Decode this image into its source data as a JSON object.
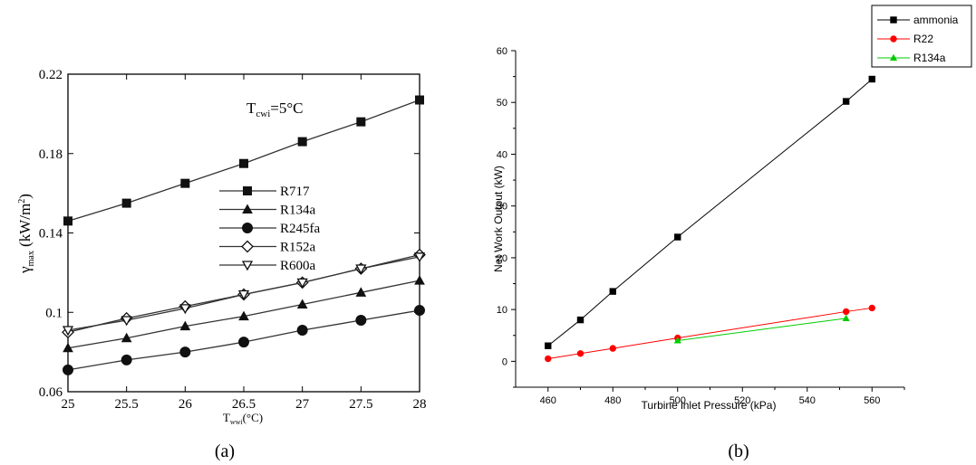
{
  "chart_data": [
    {
      "panel_label": "(a)",
      "type": "line",
      "annotation": {
        "main": "T",
        "sub": "cwi",
        "rest": "=5°C"
      },
      "xlabel": {
        "main": "T",
        "sub": "wwi",
        "rest": "(°C)"
      },
      "ylabel": {
        "main": "γ",
        "sub": "max",
        "unit": " (kW/m",
        "sup": "2",
        "close": ")"
      },
      "xlim": [
        25,
        28
      ],
      "ylim": [
        0.06,
        0.22
      ],
      "x_ticks": [
        "25",
        "25.5",
        "26",
        "26.5",
        "27",
        "27.5",
        "28"
      ],
      "y_ticks": [
        "0.06",
        "0.1",
        "0.14",
        "0.18",
        "0.22"
      ],
      "x_tick_values": [
        25,
        25.5,
        26,
        26.5,
        27,
        27.5,
        28
      ],
      "y_tick_values": [
        0.06,
        0.1,
        0.14,
        0.18,
        0.22
      ],
      "legend_position": "center",
      "x": [
        25,
        25.5,
        26,
        26.5,
        27,
        27.5,
        28
      ],
      "series": [
        {
          "name": "R717",
          "marker": "filled-square",
          "values": [
            0.146,
            0.155,
            0.165,
            0.175,
            0.186,
            0.196,
            0.207
          ]
        },
        {
          "name": "R134a",
          "marker": "filled-triangle-up",
          "values": [
            0.082,
            0.087,
            0.093,
            0.098,
            0.104,
            0.11,
            0.116
          ]
        },
        {
          "name": "R245fa",
          "marker": "filled-circle",
          "values": [
            0.071,
            0.076,
            0.08,
            0.085,
            0.091,
            0.096,
            0.101
          ]
        },
        {
          "name": "R152a",
          "marker": "open-diamond",
          "values": [
            0.09,
            0.097,
            0.103,
            0.109,
            0.115,
            0.122,
            0.129
          ]
        },
        {
          "name": "R600a",
          "marker": "open-triangle-down",
          "values": [
            0.091,
            0.096,
            0.102,
            0.109,
            0.115,
            0.122,
            0.128
          ]
        }
      ]
    },
    {
      "panel_label": "(b)",
      "type": "line",
      "xlabel": "Turbine inlet Pressure (kPa)",
      "ylabel": "Net Work Output (kW)",
      "xlim": [
        450,
        570
      ],
      "ylim": [
        -5,
        60
      ],
      "x_ticks": [
        "460",
        "480",
        "500",
        "520",
        "540",
        "560"
      ],
      "y_ticks": [
        "0",
        "10",
        "20",
        "30",
        "40",
        "50",
        "60"
      ],
      "x_tick_values": [
        460,
        480,
        500,
        520,
        540,
        560
      ],
      "y_tick_values": [
        0,
        10,
        20,
        30,
        40,
        50,
        60
      ],
      "legend_position": "top-right, outside plot",
      "series": [
        {
          "name": "ammonia",
          "color": "#000000",
          "marker": "square",
          "x": [
            460,
            470,
            480,
            500,
            552,
            560
          ],
          "values": [
            3,
            8,
            13.5,
            24,
            50.2,
            54.5
          ]
        },
        {
          "name": "R22",
          "color": "#ff0000",
          "marker": "circle",
          "x": [
            460,
            470,
            480,
            500,
            552,
            560
          ],
          "values": [
            0.5,
            1.5,
            2.5,
            4.5,
            9.6,
            10.3
          ]
        },
        {
          "name": "R134a",
          "color": "#00cc00",
          "marker": "triangle",
          "x": [
            500,
            552
          ],
          "values": [
            4,
            8.3
          ]
        }
      ]
    }
  ]
}
